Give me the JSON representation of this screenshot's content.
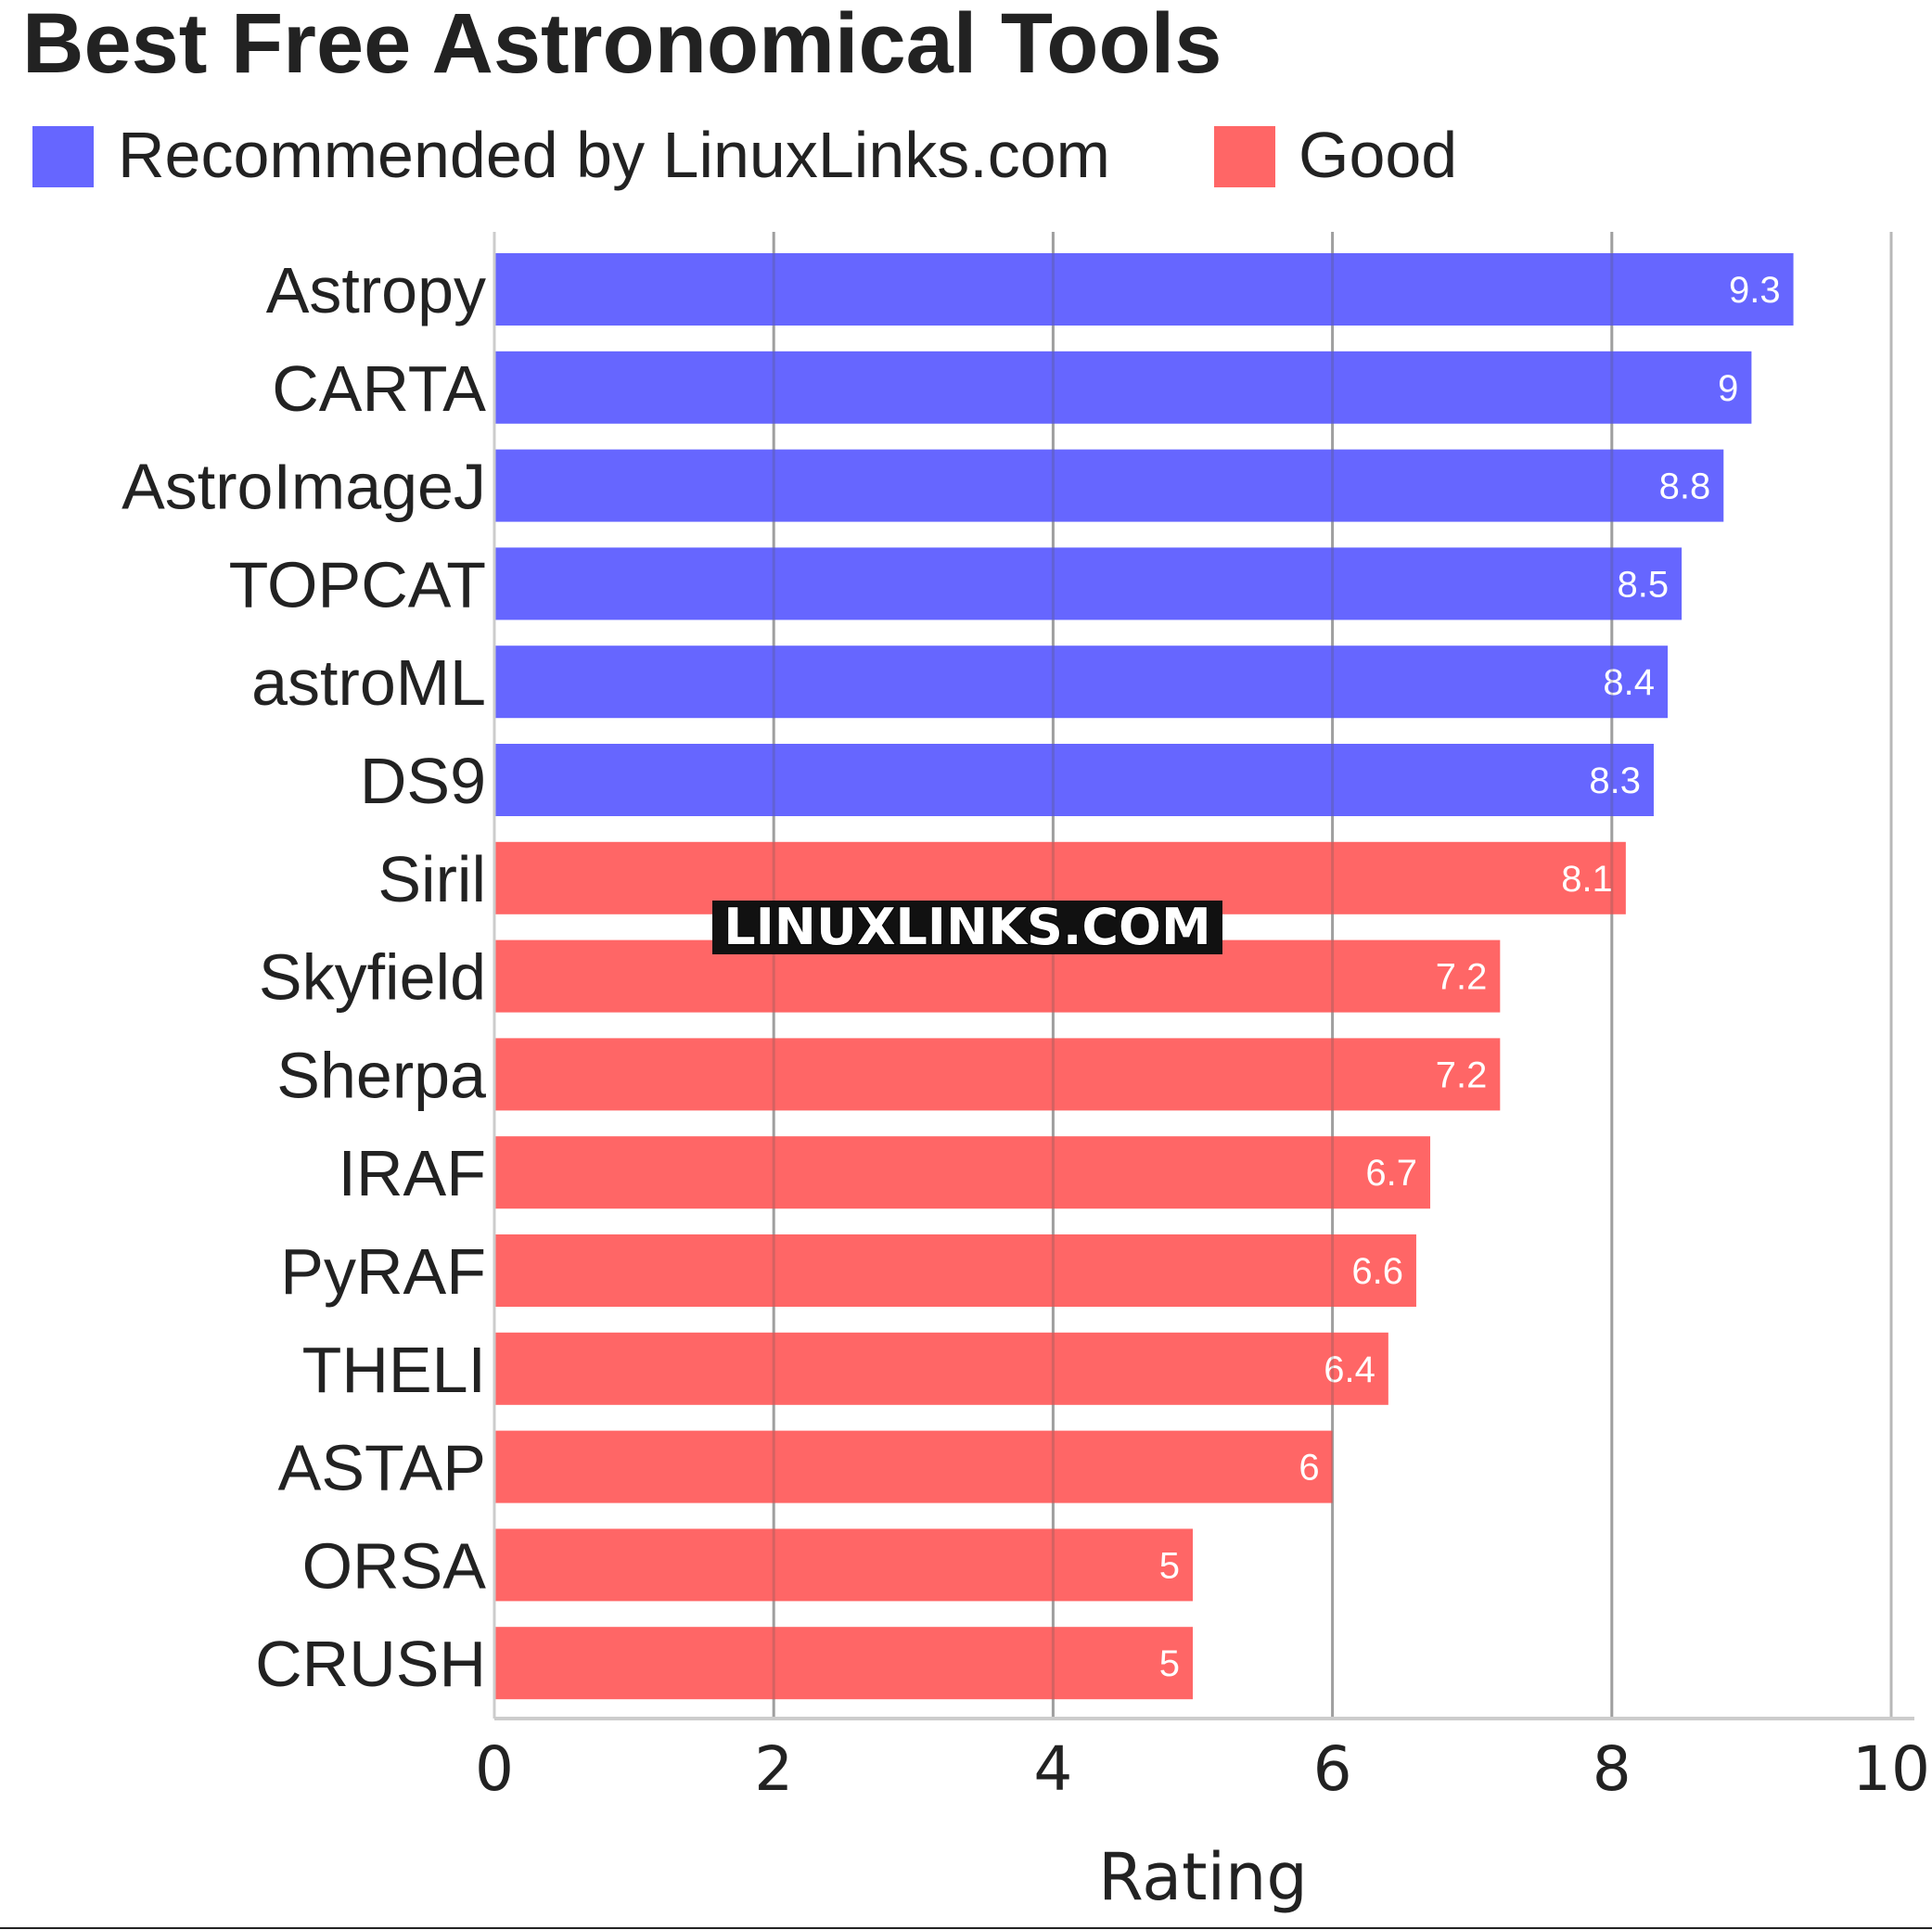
{
  "chart_data": {
    "type": "bar",
    "orientation": "horizontal",
    "title": "Best Free Astronomical Tools",
    "xlabel": "Rating",
    "ylabel": "",
    "xlim": [
      0,
      10
    ],
    "x_ticks": [
      "0",
      "2",
      "4",
      "6",
      "8",
      "10"
    ],
    "grid": true,
    "legend_position": "top-left",
    "watermark": "LINUXLINKS.COM",
    "series": [
      {
        "name": "Recommended by LinuxLinks.com",
        "color": "#6666ff"
      },
      {
        "name": "Good",
        "color": "#ff6666"
      }
    ],
    "categories": [
      "Astropy",
      "CARTA",
      "AstroImageJ",
      "TOPCAT",
      "astroML",
      "DS9",
      "Siril",
      "Skyfield",
      "Sherpa",
      "IRAF",
      "PyRAF",
      "THELI",
      "ASTAP",
      "ORSA",
      "CRUSH"
    ],
    "values": [
      9.3,
      9,
      8.8,
      8.5,
      8.4,
      8.3,
      8.1,
      7.2,
      7.2,
      6.7,
      6.6,
      6.4,
      6,
      5,
      5
    ],
    "value_labels": [
      "9.3",
      "9",
      "8.8",
      "8.5",
      "8.4",
      "8.3",
      "8.1",
      "7.2",
      "7.2",
      "6.7",
      "6.6",
      "6.4",
      "6",
      "5",
      "5"
    ],
    "series_index": [
      0,
      0,
      0,
      0,
      0,
      0,
      1,
      1,
      1,
      1,
      1,
      1,
      1,
      1,
      1
    ]
  }
}
